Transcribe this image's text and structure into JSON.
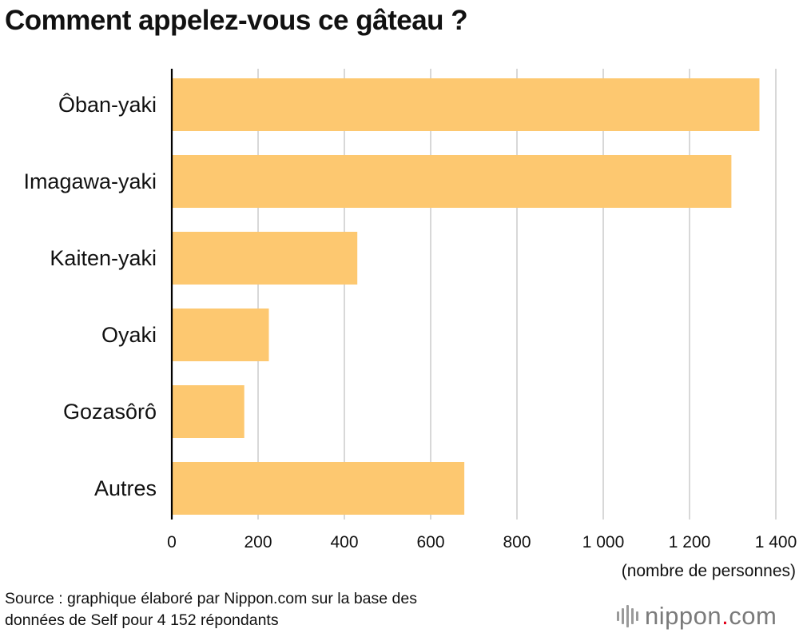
{
  "title": "Comment appelez-vous ce gâteau ?",
  "source_line1": "Source : graphique élaboré par Nippon.com sur la base des",
  "source_line2": "données de Self pour 4 152 répondants",
  "logo": {
    "name": "nippon",
    "dot": ".",
    "tld": "com",
    "icon": "sound-bars-icon",
    "dot_color": "#e2001a"
  },
  "chart_data": {
    "type": "bar",
    "orientation": "horizontal",
    "title": "Comment appelez-vous ce gâteau ?",
    "categories": [
      "Ôban-yaki",
      "Imagawa-yaki",
      "Kaiten-yaki",
      "Oyaki",
      "Gozasôrô",
      "Autres"
    ],
    "values": [
      1362,
      1297,
      430,
      225,
      168,
      678
    ],
    "xlim": [
      0,
      1400
    ],
    "xticks": [
      0,
      200,
      400,
      600,
      800,
      1000,
      1200,
      1400
    ],
    "xtick_labels": [
      "0",
      "200",
      "400",
      "600",
      "800",
      "1 000",
      "1 200",
      "1 400"
    ],
    "xlabel": "(nombre de personnes)",
    "ylabel": "",
    "grid": "vertical",
    "bar_color": "#fdc870",
    "grid_color": "#cccccc"
  }
}
